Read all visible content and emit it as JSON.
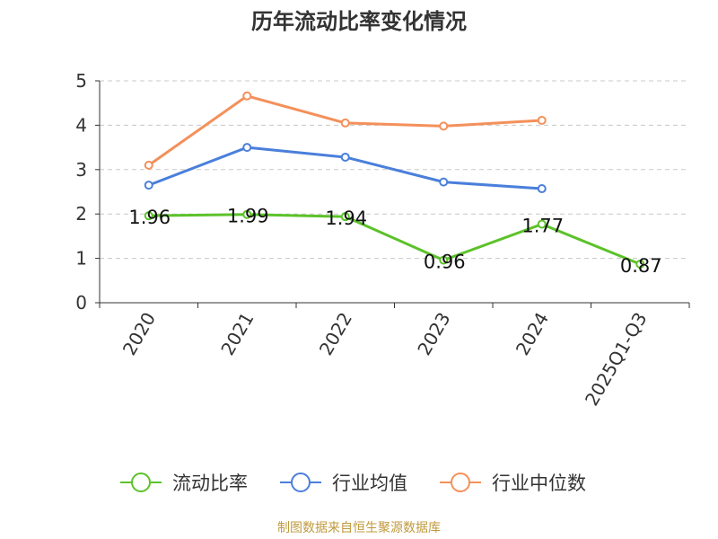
{
  "chart_data": {
    "type": "line",
    "title": "历年流动比率变化情况",
    "categories": [
      "2020",
      "2021",
      "2022",
      "2023",
      "2024",
      "2025Q1-Q3"
    ],
    "ylim": [
      0,
      5
    ],
    "yticks": [
      0,
      1,
      2,
      3,
      4,
      5
    ],
    "grid": true,
    "legend_position": "bottom",
    "series": [
      {
        "name": "流动比率",
        "color": "#5cc22a",
        "values": [
          1.96,
          1.99,
          1.94,
          0.96,
          1.77,
          0.87
        ],
        "labels": [
          "1.96",
          "1.99",
          "1.94",
          "0.96",
          "1.77",
          "0.87"
        ]
      },
      {
        "name": "行业均值",
        "color": "#4a7fdb",
        "values": [
          2.65,
          3.5,
          3.28,
          2.72,
          2.57,
          null
        ]
      },
      {
        "name": "行业中位数",
        "color": "#f4905a",
        "values": [
          3.1,
          4.66,
          4.05,
          3.98,
          4.11,
          null
        ]
      }
    ]
  },
  "footer": {
    "source": "制图数据来自恒生聚源数据库"
  }
}
